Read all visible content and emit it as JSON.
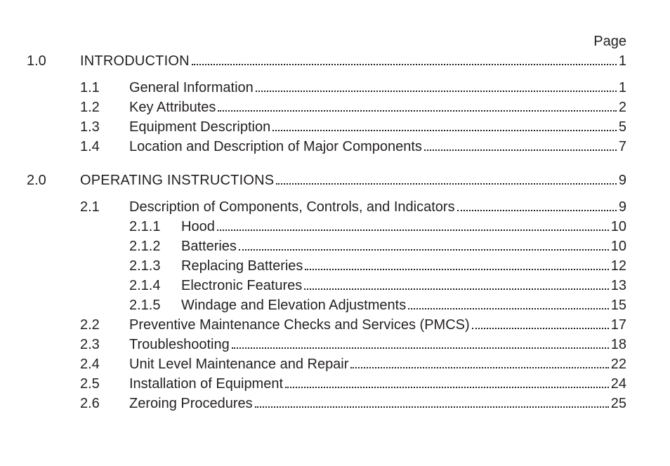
{
  "doc": {
    "page_label": "Page",
    "text_color": "#231f20",
    "bg_color": "#ffffff",
    "font_size_pt": 15,
    "leader_style": "dotted"
  },
  "toc": [
    {
      "type": "section",
      "num": "1.0",
      "title": "INTRODUCTION",
      "page": "1",
      "uppercase": true
    },
    {
      "type": "gap-after-section"
    },
    {
      "type": "sub",
      "num": "1.1",
      "title": "General Information",
      "page": "1"
    },
    {
      "type": "sub",
      "num": "1.2",
      "title": "Key Attributes",
      "page": "2"
    },
    {
      "type": "sub",
      "num": "1.3",
      "title": "Equipment Description",
      "page": "5"
    },
    {
      "type": "sub",
      "num": "1.4",
      "title": "Location and Description of Major Components",
      "page": "7"
    },
    {
      "type": "gap-before-section"
    },
    {
      "type": "section",
      "num": "2.0",
      "title": "OPERATING INSTRUCTIONS",
      "page": "9",
      "uppercase": true
    },
    {
      "type": "gap-after-section"
    },
    {
      "type": "sub",
      "num": "2.1",
      "title": "Description of Components, Controls, and Indicators",
      "page": "9"
    },
    {
      "type": "subsub",
      "num": "2.1.1",
      "title": "Hood",
      "page": "10"
    },
    {
      "type": "subsub",
      "num": "2.1.2",
      "title": "Batteries ",
      "page": "10"
    },
    {
      "type": "subsub",
      "num": "2.1.3",
      "title": "Replacing Batteries",
      "page": "12"
    },
    {
      "type": "subsub",
      "num": "2.1.4",
      "title": "Electronic Features",
      "page": "13"
    },
    {
      "type": "subsub",
      "num": "2.1.5",
      "title": "Windage and Elevation Adjustments",
      "page": "15"
    },
    {
      "type": "sub",
      "num": "2.2",
      "title": "Preventive Maintenance Checks and Services (PMCS)",
      "page": "17"
    },
    {
      "type": "sub",
      "num": "2.3",
      "title": "Troubleshooting",
      "page": "18"
    },
    {
      "type": "sub",
      "num": "2.4",
      "title": "Unit Level Maintenance and Repair",
      "page": "22"
    },
    {
      "type": "sub",
      "num": "2.5",
      "title": "Installation of Equipment",
      "page": "24"
    },
    {
      "type": "sub",
      "num": "2.6",
      "title": "Zeroing Procedures",
      "page": "25"
    }
  ]
}
